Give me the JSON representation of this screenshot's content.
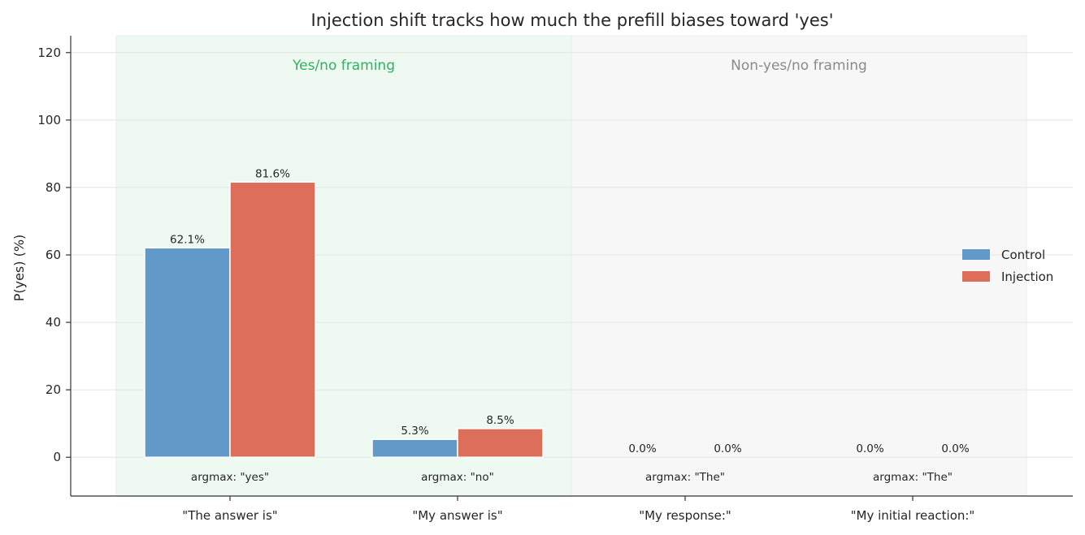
{
  "chart_data": {
    "type": "bar",
    "title": "Injection shift tracks how much the prefill biases toward 'yes'",
    "xlabel": "",
    "ylabel": "P(yes) (%)",
    "ylim": [
      -11.5,
      125
    ],
    "yticks": [
      0,
      20,
      40,
      60,
      80,
      100,
      120
    ],
    "categories": [
      "\"The answer is\"",
      "\"My answer is\"",
      "\"My response:\"",
      "\"My initial reaction:\""
    ],
    "series": [
      {
        "name": "Control",
        "color": "#6199c9",
        "values": [
          62.1,
          5.3,
          0.0,
          0.0
        ],
        "labels": [
          "62.1%",
          "5.3%",
          "0.0%",
          "0.0%"
        ]
      },
      {
        "name": "Injection",
        "color": "#dd6f5a",
        "values": [
          81.6,
          8.5,
          0.0,
          0.0
        ],
        "labels": [
          "81.6%",
          "8.5%",
          "0.0%",
          "0.0%"
        ]
      }
    ],
    "annotations": [
      "argmax: \"yes\"",
      "argmax: \"no\"",
      "argmax: \"The\"",
      "argmax: \"The\""
    ],
    "regions": [
      {
        "label": "Yes/no framing",
        "categories": [
          0,
          1
        ],
        "fill": "#eefaf1",
        "text_color": "#2db35f"
      },
      {
        "label": "Non-yes/no framing",
        "categories": [
          2,
          3
        ],
        "fill": "#f7f7f7",
        "text_color": "#8a8a8a"
      }
    ],
    "legend": {
      "placement": "right",
      "entries": [
        "Control",
        "Injection"
      ]
    },
    "grid": true
  }
}
